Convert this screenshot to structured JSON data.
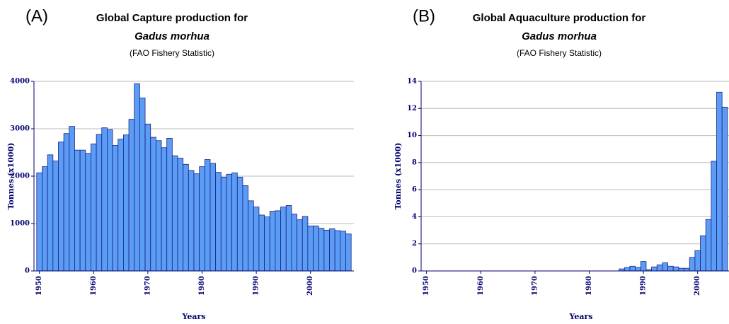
{
  "chart_data": [
    {
      "type": "bar",
      "panel": "(A)",
      "title": "Global Capture production for",
      "subtitle": "Gadus morhua",
      "note": "(FAO Fishery Statistic)",
      "x_label": "Years",
      "y_label": "Tonnes (x1000)",
      "color": "#5b9cf6",
      "grid": true,
      "xlim": [
        1949,
        2008
      ],
      "xticks": [
        1950,
        1960,
        1970,
        1980,
        1990,
        2000
      ],
      "ylim": [
        0,
        4000
      ],
      "yticks": [
        0,
        1000,
        2000,
        3000,
        4000
      ],
      "x": [
        1950,
        1951,
        1952,
        1953,
        1954,
        1955,
        1956,
        1957,
        1958,
        1959,
        1960,
        1961,
        1962,
        1963,
        1964,
        1965,
        1966,
        1967,
        1968,
        1969,
        1970,
        1971,
        1972,
        1973,
        1974,
        1975,
        1976,
        1977,
        1978,
        1979,
        1980,
        1981,
        1982,
        1983,
        1984,
        1985,
        1986,
        1987,
        1988,
        1989,
        1990,
        1991,
        1992,
        1993,
        1994,
        1995,
        1996,
        1997,
        1998,
        1999,
        2000,
        2001,
        2002,
        2003,
        2004,
        2005,
        2006,
        2007
      ],
      "values": [
        2070,
        2200,
        2450,
        2320,
        2720,
        2900,
        3050,
        2550,
        2550,
        2480,
        2680,
        2880,
        3020,
        2980,
        2650,
        2780,
        2870,
        3200,
        3950,
        3650,
        3100,
        2820,
        2750,
        2600,
        2800,
        2430,
        2380,
        2250,
        2120,
        2050,
        2200,
        2350,
        2270,
        2080,
        1980,
        2040,
        2070,
        1980,
        1800,
        1480,
        1350,
        1180,
        1140,
        1260,
        1270,
        1350,
        1380,
        1200,
        1080,
        1150,
        950,
        950,
        900,
        860,
        890,
        850,
        840,
        780
      ]
    },
    {
      "type": "bar",
      "panel": "(B)",
      "title": "Global Aquaculture production for",
      "subtitle": "Gadus morhua",
      "note": "(FAO Fishery Statistic)",
      "x_label": "Years",
      "y_label": "Tonnes (x1000)",
      "color": "#5b9cf6",
      "grid": true,
      "xlim": [
        1949,
        2008
      ],
      "xticks": [
        1950,
        1960,
        1970,
        1980,
        1990,
        2000
      ],
      "ylim": [
        0,
        14
      ],
      "yticks": [
        0,
        2,
        4,
        6,
        8,
        10,
        12,
        14
      ],
      "x": [
        1986,
        1987,
        1988,
        1989,
        1990,
        1991,
        1992,
        1993,
        1994,
        1995,
        1996,
        1997,
        1998,
        1999,
        2000,
        2001,
        2002,
        2003,
        2004,
        2005
      ],
      "values": [
        0.15,
        0.25,
        0.35,
        0.25,
        0.7,
        0.1,
        0.3,
        0.45,
        0.6,
        0.35,
        0.3,
        0.2,
        0.2,
        1.0,
        1.5,
        2.6,
        3.8,
        8.1,
        13.2,
        12.1
      ]
    }
  ]
}
